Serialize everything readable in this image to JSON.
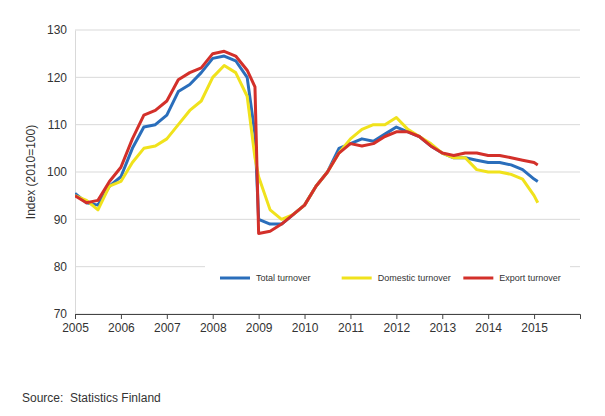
{
  "chart_data": {
    "type": "line",
    "y_label": "Index (2010=100)",
    "source": "Source:  Statistics Finland",
    "x": [
      2005.0,
      2005.25,
      2005.5,
      2005.75,
      2006.0,
      2006.25,
      2006.5,
      2006.75,
      2007.0,
      2007.25,
      2007.5,
      2007.75,
      2008.0,
      2008.25,
      2008.5,
      2008.75,
      2008.92,
      2009.0,
      2009.25,
      2009.5,
      2009.75,
      2010.0,
      2010.25,
      2010.5,
      2010.75,
      2011.0,
      2011.25,
      2011.5,
      2011.75,
      2012.0,
      2012.25,
      2012.5,
      2012.75,
      2013.0,
      2013.25,
      2013.5,
      2013.75,
      2014.0,
      2014.25,
      2014.5,
      2014.75,
      2015.0,
      2015.08
    ],
    "series": [
      {
        "name": "Total turnover",
        "color": "#2a6ebb",
        "values": [
          95.5,
          93.5,
          93,
          97,
          99,
          105,
          109.5,
          110,
          112,
          117,
          118.5,
          121,
          124,
          124.5,
          123.5,
          120,
          108,
          90,
          89,
          89,
          91,
          93,
          97,
          100,
          105,
          106,
          107,
          106.5,
          108,
          109.5,
          108.5,
          107.5,
          105.5,
          104,
          103,
          103,
          102.5,
          102,
          102,
          101.5,
          100.5,
          98.5,
          98
        ]
      },
      {
        "name": "Domestic turnover",
        "color": "#f0e21c",
        "values": [
          95,
          94,
          92,
          97,
          98,
          102,
          105,
          105.5,
          107,
          110,
          113,
          115,
          120,
          122.5,
          121,
          116,
          103,
          99,
          92,
          90,
          91,
          93,
          97,
          100,
          104,
          107,
          109,
          110,
          110,
          111.5,
          109,
          107.5,
          106,
          104,
          103,
          103,
          100.5,
          100,
          100,
          99.5,
          98.5,
          95,
          93.5
        ]
      },
      {
        "name": "Export turnover",
        "color": "#d3302a",
        "values": [
          95,
          93.5,
          94,
          98,
          101,
          107,
          112,
          113,
          115,
          119.5,
          121,
          122,
          125,
          125.5,
          124.5,
          121.5,
          118,
          87,
          87.5,
          89,
          91,
          93,
          97,
          100,
          104,
          106,
          105.5,
          106,
          107.5,
          108.5,
          108.5,
          107.5,
          105.5,
          104,
          103.5,
          104,
          104,
          103.5,
          103.5,
          103,
          102.5,
          102,
          101.5
        ]
      }
    ],
    "xlim": [
      2005,
      2016
    ],
    "xticks": [
      2005,
      2006,
      2007,
      2008,
      2009,
      2010,
      2011,
      2012,
      2013,
      2014,
      2015
    ],
    "ylim": [
      70,
      130
    ],
    "yticks": [
      70,
      80,
      90,
      100,
      110,
      120,
      130
    ],
    "grid": true,
    "legend": "bottom-right"
  }
}
